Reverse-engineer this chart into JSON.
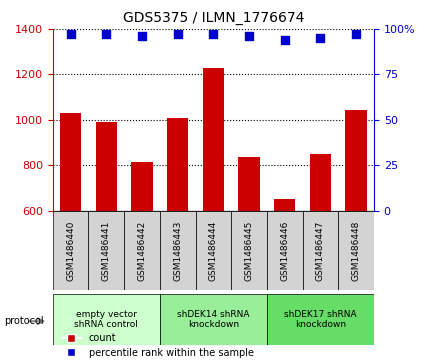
{
  "title": "GDS5375 / ILMN_1776674",
  "samples": [
    "GSM1486440",
    "GSM1486441",
    "GSM1486442",
    "GSM1486443",
    "GSM1486444",
    "GSM1486445",
    "GSM1486446",
    "GSM1486447",
    "GSM1486448"
  ],
  "counts": [
    1030,
    990,
    815,
    1010,
    1230,
    835,
    650,
    850,
    1045
  ],
  "percentile_ranks": [
    97,
    97,
    96,
    97,
    97,
    96,
    94,
    95,
    97
  ],
  "ylim_left": [
    600,
    1400
  ],
  "ylim_right": [
    0,
    100
  ],
  "yticks_left": [
    600,
    800,
    1000,
    1200,
    1400
  ],
  "yticks_right": [
    0,
    25,
    50,
    75,
    100
  ],
  "bar_color": "#cc0000",
  "dot_color": "#0000cc",
  "grid_color": "#000000",
  "groups": [
    {
      "label": "empty vector\nshRNA control",
      "start": 0,
      "end": 3,
      "color": "#ccffcc"
    },
    {
      "label": "shDEK14 shRNA\nknockdown",
      "start": 3,
      "end": 6,
      "color": "#99ee99"
    },
    {
      "label": "shDEK17 shRNA\nknockdown",
      "start": 6,
      "end": 9,
      "color": "#66dd66"
    }
  ],
  "legend_count_label": "count",
  "legend_percentile_label": "percentile rank within the sample",
  "protocol_label": "protocol",
  "bar_bottom": 600
}
